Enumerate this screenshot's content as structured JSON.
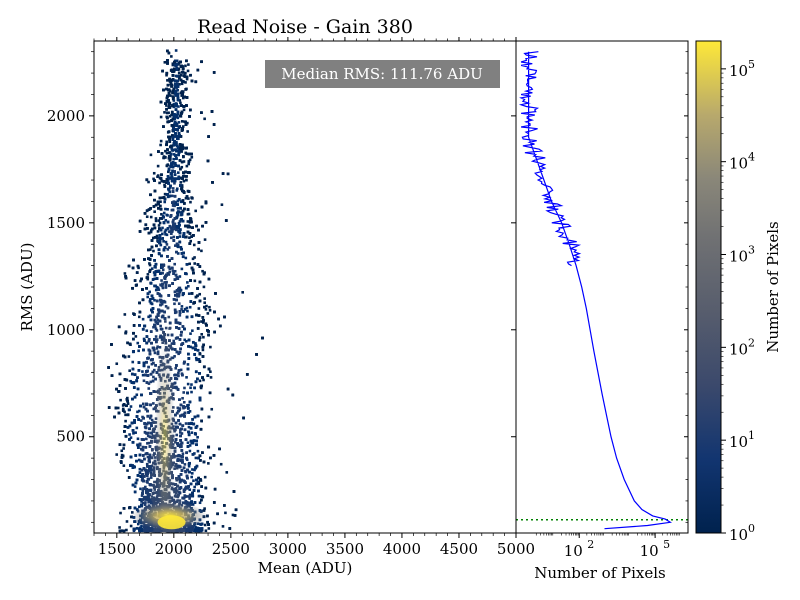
{
  "chart_data": [
    {
      "type": "heatmap",
      "title": "Read Noise - Gain 380",
      "xlabel": "Mean (ADU)",
      "ylabel": "RMS (ADU)",
      "xlim": [
        1300,
        5000
      ],
      "ylim": [
        50,
        2350
      ],
      "xticks": [
        1500,
        2000,
        2500,
        3000,
        3500,
        4000,
        4500,
        5000
      ],
      "xtick_labels": [
        "1500",
        "2000",
        "2500",
        "3000",
        "3500",
        "4000",
        "4500",
        "5000"
      ],
      "yticks": [
        500,
        1000,
        1500,
        2000
      ],
      "ytick_labels": [
        "500",
        "1000",
        "1500",
        "2000"
      ],
      "annotation": "Median RMS: 111.76 ADU",
      "colormap": "cividis",
      "color_scale": "log",
      "density_peak": {
        "x": 1980,
        "y": 100,
        "counts": 200000
      },
      "density_ridge": [
        {
          "y": 80,
          "x_center": 1950,
          "x_min": 1560,
          "x_max": 2180
        },
        {
          "y": 150,
          "x_center": 1940,
          "x_min": 1600,
          "x_max": 2240
        },
        {
          "y": 300,
          "x_center": 1920,
          "x_min": 1640,
          "x_max": 2300
        },
        {
          "y": 500,
          "x_center": 1910,
          "x_min": 1610,
          "x_max": 2400
        },
        {
          "y": 700,
          "x_center": 1920,
          "x_min": 1580,
          "x_max": 2450
        },
        {
          "y": 900,
          "x_center": 1930,
          "x_min": 1560,
          "x_max": 2480
        },
        {
          "y": 1100,
          "x_center": 1950,
          "x_min": 1600,
          "x_max": 2420
        },
        {
          "y": 1300,
          "x_center": 1970,
          "x_min": 1650,
          "x_max": 2320
        },
        {
          "y": 1500,
          "x_center": 1990,
          "x_min": 1720,
          "x_max": 2230
        },
        {
          "y": 1700,
          "x_center": 2000,
          "x_min": 1820,
          "x_max": 2180
        },
        {
          "y": 1900,
          "x_center": 2020,
          "x_min": 1900,
          "x_max": 2150
        }
      ]
    },
    {
      "type": "line",
      "orientation": "horizontal-histogram",
      "xlabel": "Number of Pixels",
      "x_scale": "log",
      "xlim_log10": [
        -0.5,
        6.3
      ],
      "xticks_log10": [
        2,
        5
      ],
      "xtick_labels": [
        "10",
        "10"
      ],
      "xtick_exponents": [
        "2",
        "5"
      ],
      "series_color": "#0000ff",
      "median_line": {
        "y": 111.76,
        "color": "#008000",
        "style": "dotted"
      },
      "series": [
        {
          "y": 70,
          "counts": 1000
        },
        {
          "y": 85,
          "counts": 50000
        },
        {
          "y": 100,
          "counts": 400000
        },
        {
          "y": 115,
          "counts": 250000
        },
        {
          "y": 130,
          "counts": 80000
        },
        {
          "y": 160,
          "counts": 30000
        },
        {
          "y": 200,
          "counts": 15000
        },
        {
          "y": 300,
          "counts": 6000
        },
        {
          "y": 400,
          "counts": 3000
        },
        {
          "y": 500,
          "counts": 1800
        },
        {
          "y": 600,
          "counts": 1200
        },
        {
          "y": 700,
          "counts": 800
        },
        {
          "y": 800,
          "counts": 550
        },
        {
          "y": 900,
          "counts": 380
        },
        {
          "y": 1000,
          "counts": 270
        },
        {
          "y": 1100,
          "counts": 190
        },
        {
          "y": 1200,
          "counts": 125
        },
        {
          "y": 1300,
          "counts": 75
        },
        {
          "y": 1400,
          "counts": 40
        },
        {
          "y": 1500,
          "counts": 20
        },
        {
          "y": 1600,
          "counts": 8
        },
        {
          "y": 1700,
          "counts": 4
        },
        {
          "y": 1800,
          "counts": 2
        },
        {
          "y": 1900,
          "counts": 1
        },
        {
          "y": 2000,
          "counts": 1
        },
        {
          "y": 2100,
          "counts": 1
        },
        {
          "y": 2200,
          "counts": 1
        },
        {
          "y": 2300,
          "counts": 1
        }
      ]
    },
    {
      "type": "colorbar",
      "label": "Number of Pixels",
      "scale": "log",
      "range_log10": [
        0,
        5.3
      ],
      "ticks_log10": [
        0,
        1,
        2,
        3,
        4,
        5
      ],
      "tick_labels": [
        "10",
        "10",
        "10",
        "10",
        "10",
        "10"
      ],
      "tick_exponents": [
        "0",
        "1",
        "2",
        "3",
        "4",
        "5"
      ]
    }
  ]
}
